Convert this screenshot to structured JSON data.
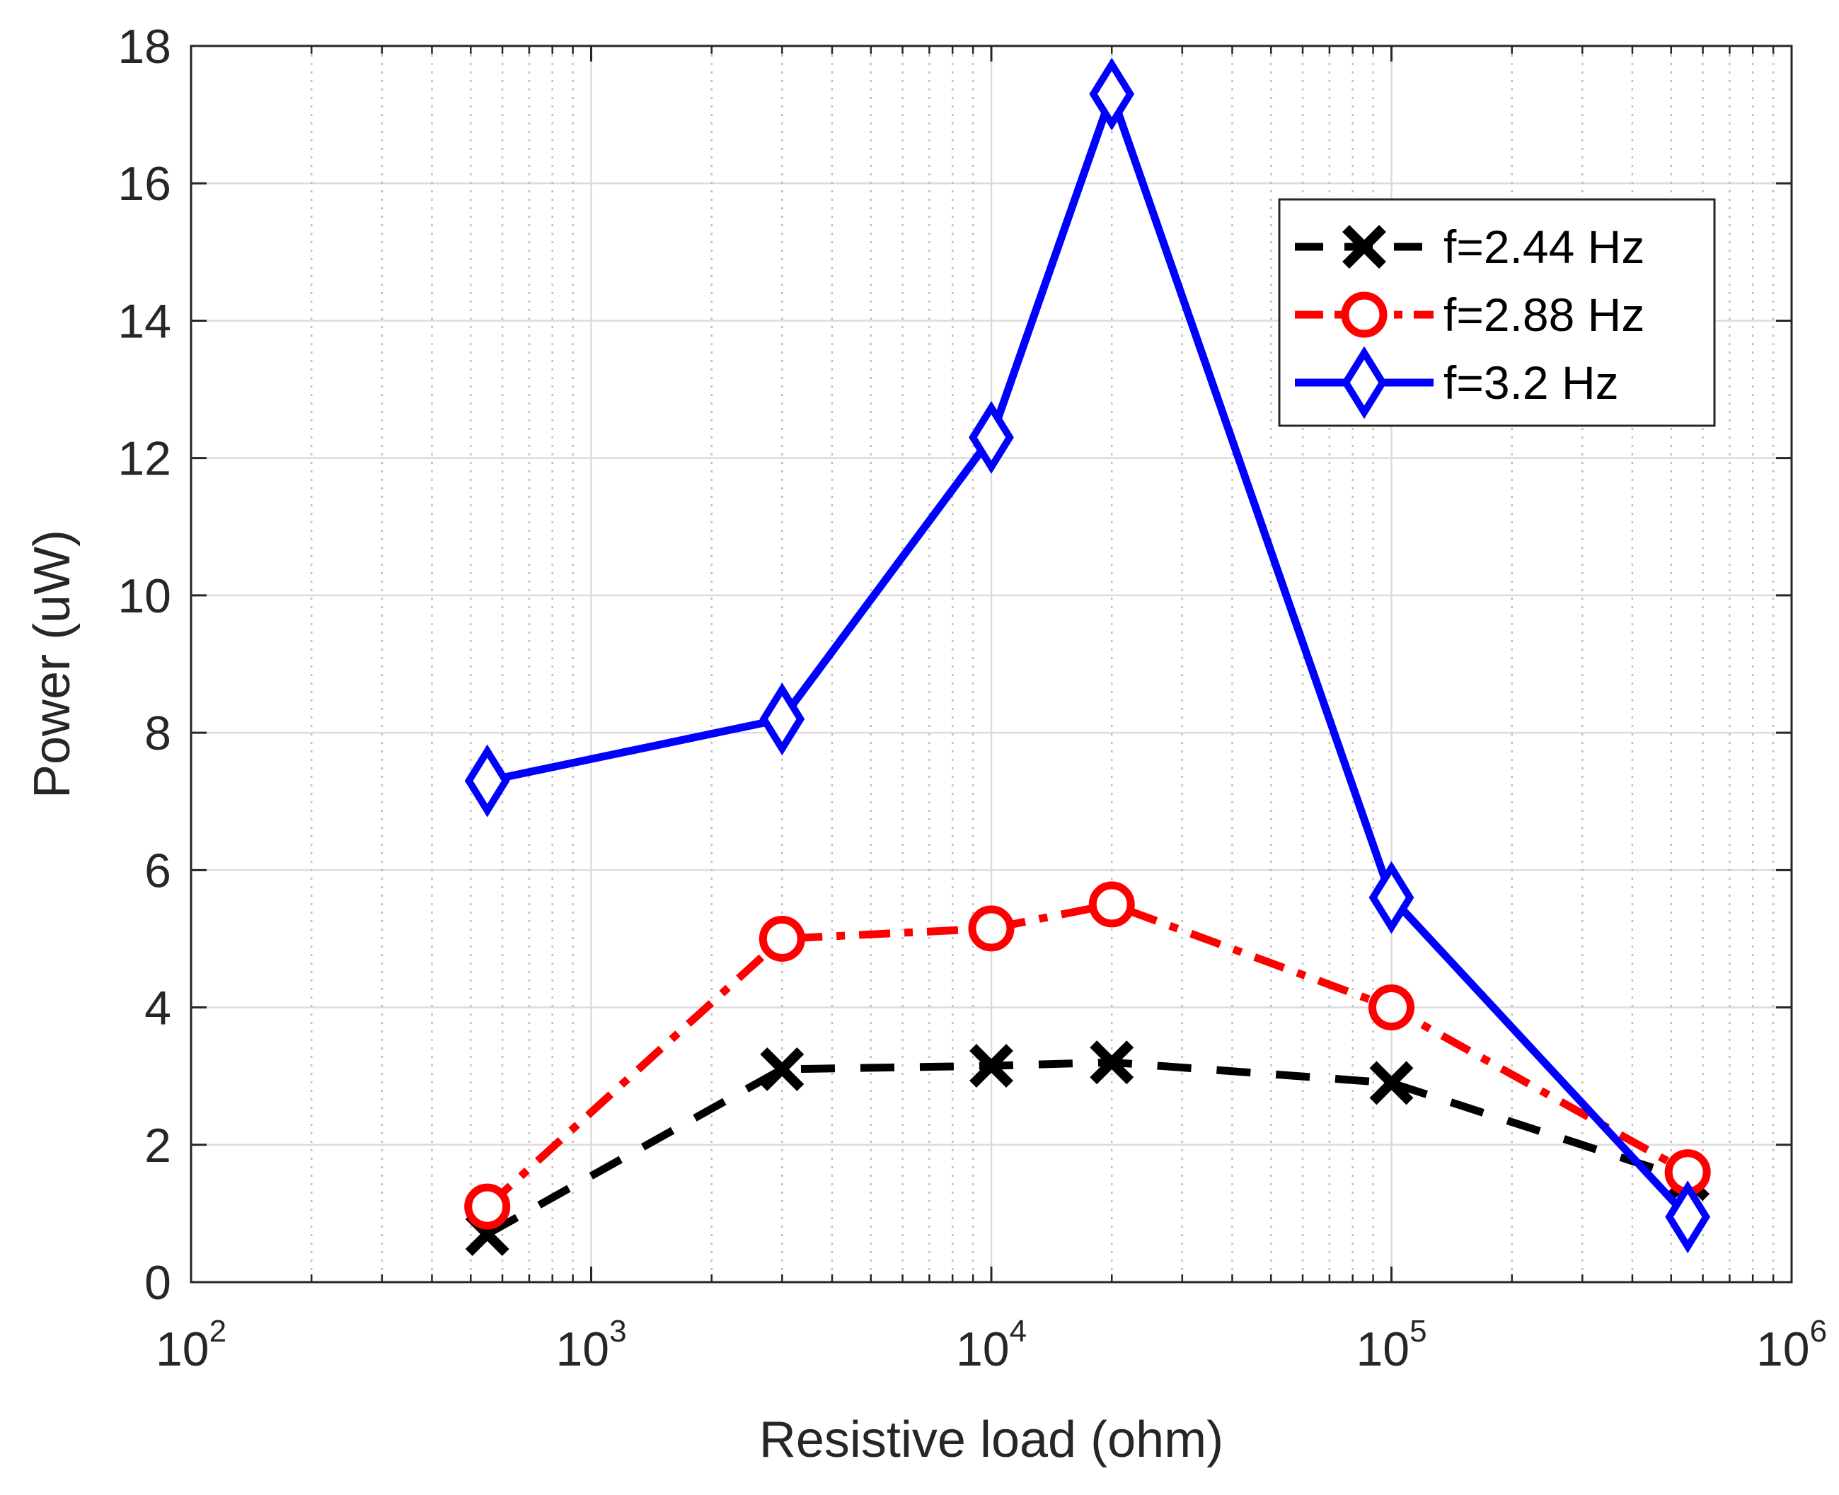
{
  "chart_data": {
    "type": "line",
    "title": "",
    "xlabel": "Resistive load (ohm)",
    "ylabel": "Power (uW)",
    "xscale": "log",
    "xlim": [
      100,
      1000000
    ],
    "ylim": [
      0,
      18
    ],
    "xticks": [
      {
        "base": "10",
        "exp": "2",
        "value": 100
      },
      {
        "base": "10",
        "exp": "3",
        "value": 1000
      },
      {
        "base": "10",
        "exp": "4",
        "value": 10000
      },
      {
        "base": "10",
        "exp": "5",
        "value": 100000
      },
      {
        "base": "10",
        "exp": "6",
        "value": 1000000
      }
    ],
    "yticks": [
      "0",
      "2",
      "4",
      "6",
      "8",
      "10",
      "12",
      "14",
      "16",
      "18"
    ],
    "grid": true,
    "legend_position": "top-right",
    "x": [
      550,
      3000,
      10000,
      20000,
      100000,
      550000
    ],
    "series": [
      {
        "name": "f=2.44 Hz",
        "values": [
          0.7,
          3.1,
          3.15,
          3.2,
          2.9,
          1.5
        ],
        "color": "#000000",
        "marker": "x",
        "line": "dashed"
      },
      {
        "name": "f=2.88 Hz",
        "values": [
          1.1,
          5.0,
          5.15,
          5.5,
          4.0,
          1.6
        ],
        "color": "#ff0000",
        "marker": "circle",
        "line": "dashdot"
      },
      {
        "name": "f=3.2 Hz",
        "values": [
          7.3,
          8.2,
          12.3,
          17.3,
          5.6,
          0.95
        ],
        "color": "#0000ff",
        "marker": "diamond",
        "line": "solid"
      }
    ]
  }
}
